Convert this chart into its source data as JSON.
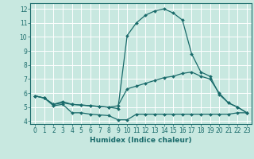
{
  "xlabel": "Humidex (Indice chaleur)",
  "xlim": [
    -0.5,
    23.5
  ],
  "ylim": [
    3.8,
    12.4
  ],
  "yticks": [
    4,
    5,
    6,
    7,
    8,
    9,
    10,
    11,
    12
  ],
  "xticks": [
    0,
    1,
    2,
    3,
    4,
    5,
    6,
    7,
    8,
    9,
    10,
    11,
    12,
    13,
    14,
    15,
    16,
    17,
    18,
    19,
    20,
    21,
    22,
    23
  ],
  "background_color": "#c8e8e0",
  "grid_color": "#ffffff",
  "line_color": "#1a6b6b",
  "line1_x": [
    0,
    1,
    2,
    3,
    4,
    5,
    6,
    7,
    8,
    9,
    10,
    11,
    12,
    13,
    14,
    15,
    16,
    17,
    18,
    19,
    20,
    21,
    22,
    23
  ],
  "line1_y": [
    5.8,
    5.65,
    5.1,
    5.2,
    4.6,
    4.6,
    4.5,
    4.45,
    4.4,
    4.1,
    4.1,
    4.5,
    4.5,
    4.5,
    4.5,
    4.5,
    4.5,
    4.5,
    4.5,
    4.5,
    4.5,
    4.5,
    4.6,
    4.6
  ],
  "line2_x": [
    0,
    1,
    2,
    3,
    4,
    5,
    6,
    7,
    8,
    9,
    10,
    11,
    12,
    13,
    14,
    15,
    16,
    17,
    18,
    19,
    20,
    21,
    22,
    23
  ],
  "line2_y": [
    5.8,
    5.65,
    5.2,
    5.3,
    5.2,
    5.15,
    5.1,
    5.05,
    5.0,
    5.1,
    6.3,
    6.5,
    6.7,
    6.9,
    7.1,
    7.2,
    7.4,
    7.5,
    7.2,
    7.0,
    6.0,
    5.3,
    5.0,
    4.6
  ],
  "line3_x": [
    0,
    1,
    2,
    3,
    4,
    5,
    6,
    7,
    8,
    9,
    10,
    11,
    12,
    13,
    14,
    15,
    16,
    17,
    18,
    19,
    20,
    21,
    22,
    23
  ],
  "line3_y": [
    5.8,
    5.65,
    5.2,
    5.4,
    5.2,
    5.15,
    5.1,
    5.05,
    5.0,
    4.9,
    10.1,
    11.0,
    11.55,
    11.85,
    12.0,
    11.7,
    11.2,
    8.8,
    7.5,
    7.2,
    5.9,
    5.3,
    5.0,
    4.6
  ]
}
